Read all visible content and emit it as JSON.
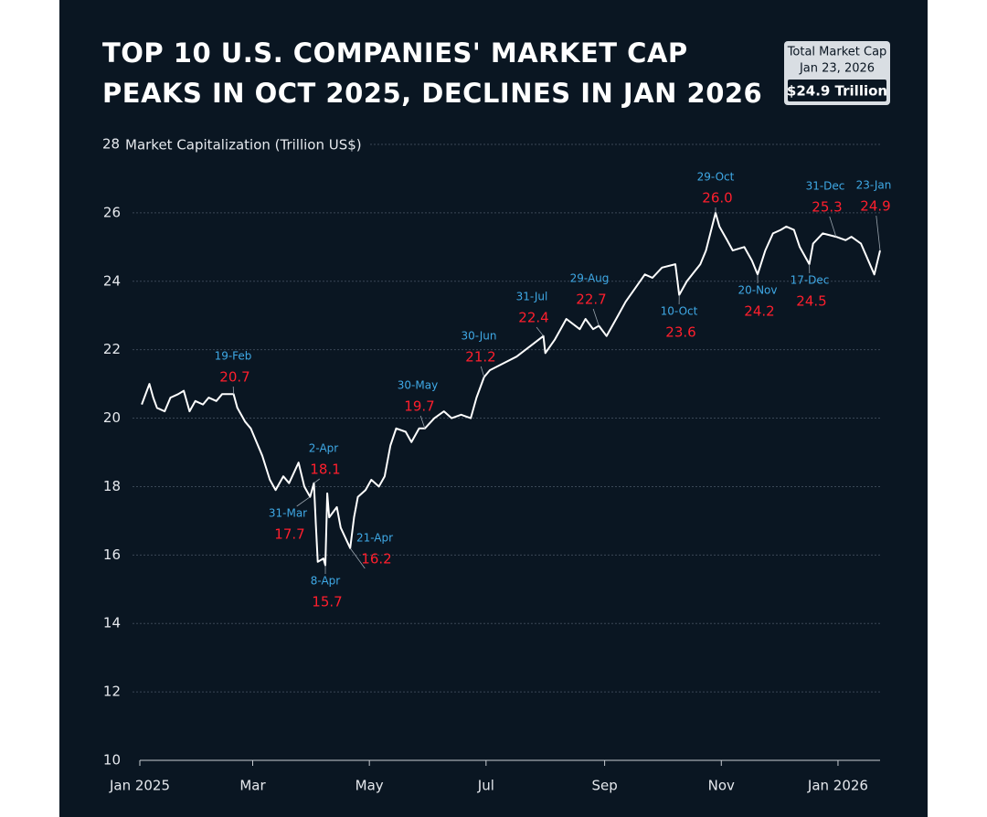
{
  "chart_data": {
    "type": "line",
    "title_lines": [
      "TOP 10 U.S. COMPANIES' MARKET CAP",
      "PEAKS IN OCT 2025, DECLINES IN JAN 2026"
    ],
    "y_label": "Market Capitalization (Trillion US$)",
    "badge": {
      "title": "Total Market Cap",
      "date": "Jan 23, 2026",
      "value": "$24.9 Trillion"
    },
    "xlim": [
      "2025-01-01",
      "2026-01-23"
    ],
    "xticks": [
      {
        "value": "2025-01-01",
        "label": "Jan 2025"
      },
      {
        "value": "2025-03-01",
        "label": "Mar"
      },
      {
        "value": "2025-05-01",
        "label": "May"
      },
      {
        "value": "2025-07-01",
        "label": "Jul"
      },
      {
        "value": "2025-09-01",
        "label": "Sep"
      },
      {
        "value": "2025-11-01",
        "label": "Nov"
      },
      {
        "value": "2026-01-01",
        "label": "Jan 2026"
      }
    ],
    "ylim": [
      10,
      28
    ],
    "yticks": [
      10,
      12,
      14,
      16,
      18,
      20,
      22,
      24,
      26,
      28
    ],
    "grid": true,
    "series": [
      {
        "color": "#ffffff",
        "x": [
          "2025-01-02",
          "2025-01-06",
          "2025-01-08",
          "2025-01-10",
          "2025-01-14",
          "2025-01-17",
          "2025-01-21",
          "2025-01-24",
          "2025-01-27",
          "2025-01-30",
          "2025-02-03",
          "2025-02-06",
          "2025-02-10",
          "2025-02-13",
          "2025-02-19",
          "2025-02-21",
          "2025-02-25",
          "2025-02-28",
          "2025-03-03",
          "2025-03-06",
          "2025-03-10",
          "2025-03-13",
          "2025-03-17",
          "2025-03-20",
          "2025-03-25",
          "2025-03-28",
          "2025-03-31",
          "2025-04-02",
          "2025-04-03",
          "2025-04-04",
          "2025-04-07",
          "2025-04-08",
          "2025-04-09",
          "2025-04-10",
          "2025-04-14",
          "2025-04-16",
          "2025-04-21",
          "2025-04-23",
          "2025-04-25",
          "2025-04-29",
          "2025-05-02",
          "2025-05-06",
          "2025-05-09",
          "2025-05-12",
          "2025-05-15",
          "2025-05-20",
          "2025-05-23",
          "2025-05-27",
          "2025-05-30",
          "2025-06-04",
          "2025-06-09",
          "2025-06-13",
          "2025-06-18",
          "2025-06-23",
          "2025-06-26",
          "2025-06-30",
          "2025-07-03",
          "2025-07-10",
          "2025-07-17",
          "2025-07-24",
          "2025-07-31",
          "2025-08-01",
          "2025-08-06",
          "2025-08-12",
          "2025-08-19",
          "2025-08-22",
          "2025-08-26",
          "2025-08-29",
          "2025-09-02",
          "2025-09-08",
          "2025-09-12",
          "2025-09-17",
          "2025-09-22",
          "2025-09-26",
          "2025-10-01",
          "2025-10-08",
          "2025-10-10",
          "2025-10-14",
          "2025-10-21",
          "2025-10-24",
          "2025-10-29",
          "2025-10-31",
          "2025-11-04",
          "2025-11-07",
          "2025-11-13",
          "2025-11-17",
          "2025-11-20",
          "2025-11-24",
          "2025-11-28",
          "2025-12-02",
          "2025-12-05",
          "2025-12-09",
          "2025-12-12",
          "2025-12-17",
          "2025-12-19",
          "2025-12-24",
          "2025-12-31",
          "2026-01-05",
          "2026-01-08",
          "2026-01-13",
          "2026-01-20",
          "2026-01-23"
        ],
        "values": [
          20.4,
          21.0,
          20.6,
          20.3,
          20.2,
          20.6,
          20.7,
          20.8,
          20.2,
          20.5,
          20.4,
          20.6,
          20.5,
          20.7,
          20.7,
          20.3,
          19.9,
          19.7,
          19.3,
          18.9,
          18.2,
          17.9,
          18.3,
          18.1,
          18.7,
          18.0,
          17.7,
          18.1,
          16.9,
          15.8,
          15.9,
          15.7,
          17.8,
          17.1,
          17.4,
          16.8,
          16.2,
          17.1,
          17.7,
          17.9,
          18.2,
          18.0,
          18.3,
          19.2,
          19.7,
          19.6,
          19.3,
          19.7,
          19.7,
          20.0,
          20.2,
          20.0,
          20.1,
          20.0,
          20.6,
          21.2,
          21.4,
          21.6,
          21.8,
          22.1,
          22.4,
          21.9,
          22.3,
          22.9,
          22.6,
          22.9,
          22.6,
          22.7,
          22.4,
          23.0,
          23.4,
          23.8,
          24.2,
          24.1,
          24.4,
          24.5,
          23.6,
          24.0,
          24.5,
          24.9,
          26.0,
          25.6,
          25.2,
          24.9,
          25.0,
          24.6,
          24.2,
          24.9,
          25.4,
          25.5,
          25.6,
          25.5,
          25.0,
          24.5,
          25.1,
          25.4,
          25.3,
          25.2,
          25.3,
          25.1,
          24.2,
          24.9
        ]
      }
    ],
    "annotations": [
      {
        "x": "2025-02-19",
        "label": "19-Feb",
        "value": 20.7
      },
      {
        "x": "2025-03-31",
        "label": "31-Mar",
        "value": 17.7
      },
      {
        "x": "2025-04-02",
        "label": "2-Apr",
        "value": 18.1
      },
      {
        "x": "2025-04-08",
        "label": "8-Apr",
        "value": 15.7
      },
      {
        "x": "2025-04-21",
        "label": "21-Apr",
        "value": 16.2
      },
      {
        "x": "2025-05-30",
        "label": "30-May",
        "value": 19.7
      },
      {
        "x": "2025-06-30",
        "label": "30-Jun",
        "value": 21.2
      },
      {
        "x": "2025-07-31",
        "label": "31-Jul",
        "value": 22.4
      },
      {
        "x": "2025-08-29",
        "label": "29-Aug",
        "value": 22.7
      },
      {
        "x": "2025-10-10",
        "label": "10-Oct",
        "value": 23.6
      },
      {
        "x": "2025-10-29",
        "label": "29-Oct",
        "value": 26,
        "value_label": "26.0"
      },
      {
        "x": "2025-11-20",
        "label": "20-Nov",
        "value": 24.2
      },
      {
        "x": "2025-12-17",
        "label": "17-Dec",
        "value": 24.5
      },
      {
        "x": "2025-12-31",
        "label": "31-Dec",
        "value": 25.3
      },
      {
        "x": "2026-01-23",
        "label": "23-Jan",
        "value": 24.9
      }
    ]
  }
}
